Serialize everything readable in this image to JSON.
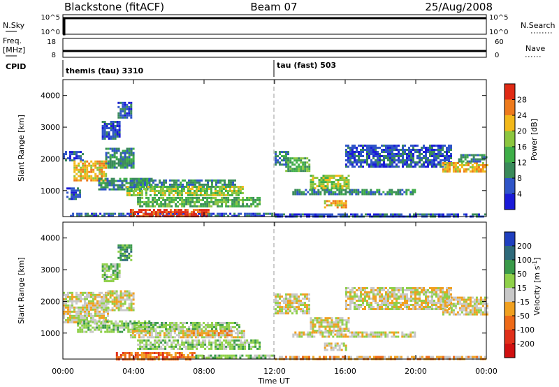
{
  "header": {
    "station": "Blackstone (fitACF)",
    "beam": "Beam 07",
    "date": "25/Aug/2008"
  },
  "status_panels": {
    "nsky_label": "N.Sky",
    "nsky_ticks": [
      "10^5",
      "10^0"
    ],
    "nsearch_label": "N.Search",
    "nsearch_ticks": [
      "10^5",
      "10^0"
    ],
    "freq_label_line1": "Freq.",
    "freq_label_line2": "[MHz]",
    "freq_ticks": [
      "18",
      "8"
    ],
    "nave_label": "Nave",
    "nave_ticks": [
      "60",
      "0"
    ],
    "cpid_label": "CPID",
    "cpid_segments": [
      {
        "label": "themis (tau) 3310",
        "start_hour": 0,
        "end_hour": 12
      },
      {
        "label": "tau (fast) 503",
        "start_hour": 12,
        "end_hour": 24
      }
    ]
  },
  "time_axis": {
    "xlabel": "Time UT",
    "ticks": [
      "00:00",
      "04:00",
      "08:00",
      "12:00",
      "16:00",
      "20:00",
      "00:00"
    ],
    "hours": [
      0,
      4,
      8,
      12,
      16,
      20,
      24
    ]
  },
  "chart_data": [
    {
      "type": "heatmap",
      "parameter": "power",
      "ylabel": "Slant Range [km]",
      "xlim": [
        0,
        24
      ],
      "ylim": [
        180,
        4500
      ],
      "yticks": [
        1000,
        2000,
        3000,
        4000
      ],
      "colorbar": {
        "label": "Power [dB]",
        "ticks": [
          "4",
          "8",
          "12",
          "16",
          "20",
          "24",
          "28"
        ],
        "colors": [
          "#1a1ad8",
          "#2f55c8",
          "#3a8a5a",
          "#3fae48",
          "#8cc63f",
          "#f2b81a",
          "#ee7a1c",
          "#e02a14"
        ]
      },
      "features": [
        {
          "hour_start": 0.0,
          "hour_end": 1.1,
          "range_lo": 1950,
          "range_hi": 2250,
          "level": 1
        },
        {
          "hour_start": 0.6,
          "hour_end": 2.4,
          "range_lo": 1350,
          "range_hi": 1950,
          "level": 5
        },
        {
          "hour_start": 2.4,
          "hour_end": 4.0,
          "range_lo": 1700,
          "range_hi": 2350,
          "level": 2
        },
        {
          "hour_start": 2.2,
          "hour_end": 3.2,
          "range_lo": 2650,
          "range_hi": 3200,
          "level": 1
        },
        {
          "hour_start": 3.1,
          "hour_end": 3.9,
          "range_lo": 3300,
          "range_hi": 3800,
          "level": 1
        },
        {
          "hour_start": 0.2,
          "hour_end": 1.0,
          "range_lo": 750,
          "range_hi": 1100,
          "level": 1
        },
        {
          "hour_start": 2.0,
          "hour_end": 5.0,
          "range_lo": 1050,
          "range_hi": 1400,
          "level": 2
        },
        {
          "hour_start": 4.0,
          "hour_end": 9.8,
          "range_lo": 1150,
          "range_hi": 1350,
          "level": 2
        },
        {
          "hour_start": 3.6,
          "hour_end": 10.2,
          "range_lo": 850,
          "range_hi": 1150,
          "level": 4
        },
        {
          "hour_start": 4.2,
          "hour_end": 11.2,
          "range_lo": 500,
          "range_hi": 800,
          "level": 3
        },
        {
          "hour_start": 0.4,
          "hour_end": 11.9,
          "range_lo": 190,
          "range_hi": 300,
          "level": 1
        },
        {
          "hour_start": 3.8,
          "hour_end": 8.2,
          "range_lo": 190,
          "range_hi": 420,
          "level": 7
        },
        {
          "hour_start": 12.0,
          "hour_end": 12.8,
          "range_lo": 1800,
          "range_hi": 2250,
          "level": 2
        },
        {
          "hour_start": 12.6,
          "hour_end": 14.0,
          "range_lo": 1650,
          "range_hi": 2050,
          "level": 3
        },
        {
          "hour_start": 14.0,
          "hour_end": 16.2,
          "range_lo": 1100,
          "range_hi": 1500,
          "level": 4
        },
        {
          "hour_start": 14.8,
          "hour_end": 16.0,
          "range_lo": 500,
          "range_hi": 700,
          "level": 5
        },
        {
          "hour_start": 13.0,
          "hour_end": 20.0,
          "range_lo": 880,
          "range_hi": 1050,
          "level": 2
        },
        {
          "hour_start": 16.0,
          "hour_end": 22.0,
          "range_lo": 1750,
          "range_hi": 2450,
          "level": 1
        },
        {
          "hour_start": 21.5,
          "hour_end": 24.0,
          "range_lo": 1600,
          "range_hi": 1900,
          "level": 5
        },
        {
          "hour_start": 22.4,
          "hour_end": 24.0,
          "range_lo": 1900,
          "range_hi": 2150,
          "level": 2
        },
        {
          "hour_start": 12.0,
          "hour_end": 24.0,
          "range_lo": 190,
          "range_hi": 280,
          "level": 1
        }
      ]
    },
    {
      "type": "heatmap",
      "parameter": "velocity",
      "ylabel": "Slant Range [km]",
      "xlim": [
        0,
        24
      ],
      "ylim": [
        180,
        4500
      ],
      "yticks": [
        1000,
        2000,
        3000,
        4000
      ],
      "colorbar": {
        "label": "Velocity [m s^-1]",
        "ticks": [
          "200",
          "100",
          "50",
          "15",
          "-15",
          "-50",
          "-100",
          "-200"
        ],
        "colors": [
          "#1f3fbf",
          "#2e6a7a",
          "#3a9a4a",
          "#8fd04a",
          "#c8c8c8",
          "#f0a020",
          "#ee6a18",
          "#e0301a",
          "#d01010"
        ]
      },
      "features": [
        {
          "hour_start": 0.0,
          "hour_end": 2.5,
          "range_lo": 1350,
          "range_hi": 2300,
          "level": 4
        },
        {
          "hour_start": 2.4,
          "hour_end": 4.0,
          "range_lo": 1750,
          "range_hi": 2350,
          "level": 4
        },
        {
          "hour_start": 2.2,
          "hour_end": 3.2,
          "range_lo": 2650,
          "range_hi": 3200,
          "level": 3
        },
        {
          "hour_start": 3.1,
          "hour_end": 3.9,
          "range_lo": 3300,
          "range_hi": 3800,
          "level": 2
        },
        {
          "hour_start": 0.8,
          "hour_end": 5.0,
          "range_lo": 1050,
          "range_hi": 1400,
          "level": 3
        },
        {
          "hour_start": 4.0,
          "hour_end": 10.0,
          "range_lo": 1100,
          "range_hi": 1350,
          "level": 3
        },
        {
          "hour_start": 3.8,
          "hour_end": 10.3,
          "range_lo": 850,
          "range_hi": 1100,
          "level": 4
        },
        {
          "hour_start": 7.0,
          "hour_end": 9.5,
          "range_lo": 950,
          "range_hi": 1100,
          "level": 5
        },
        {
          "hour_start": 4.2,
          "hour_end": 11.2,
          "range_lo": 500,
          "range_hi": 800,
          "level": 3
        },
        {
          "hour_start": 3.0,
          "hour_end": 7.5,
          "range_lo": 190,
          "range_hi": 400,
          "level": 6
        },
        {
          "hour_start": 7.5,
          "hour_end": 11.9,
          "range_lo": 190,
          "range_hi": 320,
          "level": 3
        },
        {
          "hour_start": 12.0,
          "hour_end": 14.0,
          "range_lo": 1650,
          "range_hi": 2250,
          "level": 4
        },
        {
          "hour_start": 14.0,
          "hour_end": 16.2,
          "range_lo": 1100,
          "range_hi": 1500,
          "level": 4
        },
        {
          "hour_start": 14.8,
          "hour_end": 16.0,
          "range_lo": 500,
          "range_hi": 700,
          "level": 4
        },
        {
          "hour_start": 13.0,
          "hour_end": 20.0,
          "range_lo": 880,
          "range_hi": 1050,
          "level": 4
        },
        {
          "hour_start": 16.0,
          "hour_end": 22.0,
          "range_lo": 1750,
          "range_hi": 2450,
          "level": 4
        },
        {
          "hour_start": 21.5,
          "hour_end": 24.0,
          "range_lo": 1600,
          "range_hi": 2150,
          "level": 4
        },
        {
          "hour_start": 12.0,
          "hour_end": 24.0,
          "range_lo": 190,
          "range_hi": 280,
          "level": 5
        }
      ]
    }
  ]
}
